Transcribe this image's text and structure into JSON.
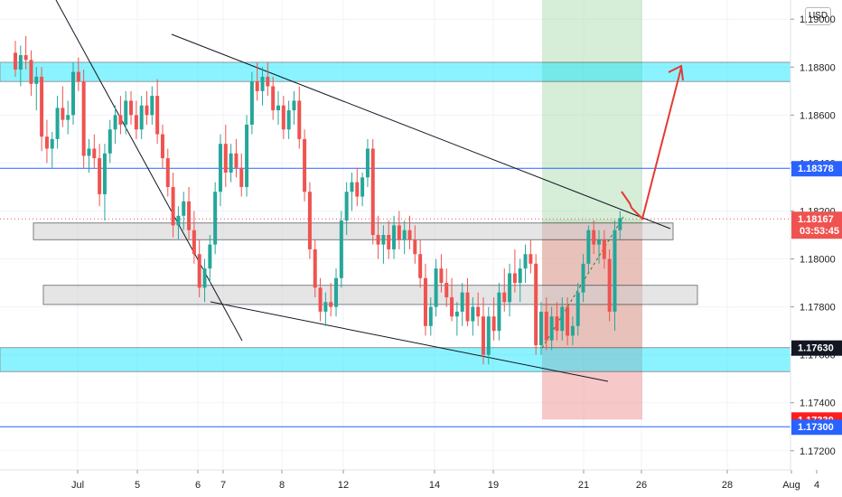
{
  "currency": "USD",
  "colors": {
    "bull": "#26a69a",
    "bear": "#ef5350",
    "zone_cyan": "#00e5ff",
    "zone_grey": "#d0d0d0",
    "profit": "#a5d6a7",
    "loss": "#ef9a9a",
    "level_line": "#2962ff",
    "arrow": "#e53935"
  },
  "chart_data": {
    "type": "candlestick",
    "title": "",
    "ylim": [
      1.1712,
      1.1908
    ],
    "y_ticks": [
      "1.17200",
      "1.17400",
      "1.17600",
      "1.17800",
      "1.18000",
      "1.18200",
      "1.18400",
      "1.18600",
      "1.18800",
      "1.19000"
    ],
    "x_ticks": [
      "Jul",
      "5",
      "6",
      "7",
      "8",
      "12",
      "14",
      "19",
      "21",
      "26",
      "28",
      "Aug",
      "4"
    ],
    "price_labels": [
      {
        "text": "1.18378",
        "value": 1.18378,
        "color": "#2962ff"
      },
      {
        "text": "1.18167",
        "value": 1.18167,
        "color": "#ef5350",
        "countdown": "03:53:45"
      },
      {
        "text": "1.17630",
        "value": 1.1763,
        "color": "#131722"
      },
      {
        "text": "1.17330",
        "value": 1.1733,
        "color": "#ff1e1e"
      },
      {
        "text": "1.17300",
        "value": 1.173,
        "color": "#2962ff"
      }
    ],
    "horizontal_lines": [
      1.18378,
      1.173
    ],
    "zones": [
      {
        "kind": "resistance",
        "from": 1.1874,
        "to": 1.1882
      },
      {
        "kind": "support",
        "from": 1.1753,
        "to": 1.1763
      },
      {
        "kind": "range",
        "from": 1.1808,
        "to": 1.1815
      },
      {
        "kind": "range",
        "from": 1.1781,
        "to": 1.1789
      }
    ],
    "position": {
      "entry": 1.1815,
      "target": 1.1908,
      "stop": 1.1733
    },
    "ohlc": [
      [
        1.1886,
        1.1891,
        1.1876,
        1.1879
      ],
      [
        1.1879,
        1.1889,
        1.1872,
        1.1885
      ],
      [
        1.1885,
        1.1893,
        1.1879,
        1.1883
      ],
      [
        1.1883,
        1.1887,
        1.1868,
        1.1873
      ],
      [
        1.1873,
        1.188,
        1.1862,
        1.1876
      ],
      [
        1.1876,
        1.188,
        1.1845,
        1.1851
      ],
      [
        1.1851,
        1.1858,
        1.184,
        1.1846
      ],
      [
        1.1846,
        1.1853,
        1.1838,
        1.185
      ],
      [
        1.185,
        1.1868,
        1.1846,
        1.1863
      ],
      [
        1.1863,
        1.1872,
        1.1855,
        1.1858
      ],
      [
        1.1858,
        1.1866,
        1.1852,
        1.186
      ],
      [
        1.186,
        1.1882,
        1.1856,
        1.1878
      ],
      [
        1.1878,
        1.1884,
        1.187,
        1.1874
      ],
      [
        1.1874,
        1.1879,
        1.1838,
        1.1843
      ],
      [
        1.1843,
        1.185,
        1.1836,
        1.1846
      ],
      [
        1.1846,
        1.1852,
        1.1838,
        1.1842
      ],
      [
        1.1842,
        1.1848,
        1.1822,
        1.1827
      ],
      [
        1.1827,
        1.1848,
        1.1816,
        1.1844
      ],
      [
        1.1844,
        1.1858,
        1.184,
        1.1854
      ],
      [
        1.1854,
        1.1864,
        1.1848,
        1.186
      ],
      [
        1.186,
        1.1868,
        1.1852,
        1.1856
      ],
      [
        1.1856,
        1.187,
        1.1852,
        1.1866
      ],
      [
        1.1866,
        1.187,
        1.1856,
        1.186
      ],
      [
        1.186,
        1.1866,
        1.185,
        1.1854
      ],
      [
        1.1854,
        1.1868,
        1.185,
        1.1864
      ],
      [
        1.1864,
        1.187,
        1.1856,
        1.186
      ],
      [
        1.186,
        1.1872,
        1.1856,
        1.1868
      ],
      [
        1.1868,
        1.1875,
        1.1848,
        1.1852
      ],
      [
        1.1852,
        1.1856,
        1.1838,
        1.1842
      ],
      [
        1.1842,
        1.1846,
        1.1826,
        1.183
      ],
      [
        1.183,
        1.1836,
        1.1809,
        1.1814
      ],
      [
        1.1814,
        1.1822,
        1.1808,
        1.1818
      ],
      [
        1.1818,
        1.1828,
        1.1812,
        1.1824
      ],
      [
        1.1824,
        1.183,
        1.1808,
        1.1812
      ],
      [
        1.1812,
        1.182,
        1.1798,
        1.1802
      ],
      [
        1.1802,
        1.1808,
        1.1784,
        1.1788
      ],
      [
        1.1788,
        1.18,
        1.1782,
        1.1796
      ],
      [
        1.1796,
        1.181,
        1.179,
        1.1806
      ],
      [
        1.1806,
        1.1832,
        1.1802,
        1.1828
      ],
      [
        1.1828,
        1.1852,
        1.1822,
        1.1848
      ],
      [
        1.1848,
        1.1856,
        1.183,
        1.1836
      ],
      [
        1.1836,
        1.1848,
        1.1832,
        1.1844
      ],
      [
        1.1844,
        1.185,
        1.1834,
        1.1838
      ],
      [
        1.1838,
        1.1844,
        1.1826,
        1.183
      ],
      [
        1.183,
        1.186,
        1.1826,
        1.1856
      ],
      [
        1.1856,
        1.1878,
        1.1852,
        1.1874
      ],
      [
        1.1874,
        1.1882,
        1.1866,
        1.187
      ],
      [
        1.187,
        1.188,
        1.1864,
        1.1876
      ],
      [
        1.1876,
        1.1882,
        1.1868,
        1.1872
      ],
      [
        1.1872,
        1.1876,
        1.1858,
        1.1862
      ],
      [
        1.1862,
        1.187,
        1.1856,
        1.1864
      ],
      [
        1.1864,
        1.1868,
        1.185,
        1.1854
      ],
      [
        1.1854,
        1.1866,
        1.185,
        1.1862
      ],
      [
        1.1862,
        1.187,
        1.1856,
        1.1866
      ],
      [
        1.1866,
        1.1872,
        1.1846,
        1.185
      ],
      [
        1.185,
        1.1854,
        1.1824,
        1.1828
      ],
      [
        1.1828,
        1.1832,
        1.18,
        1.1804
      ],
      [
        1.1804,
        1.1808,
        1.1784,
        1.1788
      ],
      [
        1.1788,
        1.1792,
        1.1774,
        1.1778
      ],
      [
        1.1778,
        1.1786,
        1.1772,
        1.1782
      ],
      [
        1.1782,
        1.179,
        1.1776,
        1.178
      ],
      [
        1.178,
        1.1796,
        1.1776,
        1.1792
      ],
      [
        1.1792,
        1.182,
        1.1788,
        1.1816
      ],
      [
        1.1816,
        1.1832,
        1.181,
        1.1828
      ],
      [
        1.1828,
        1.1836,
        1.182,
        1.1832
      ],
      [
        1.1832,
        1.1838,
        1.1822,
        1.1826
      ],
      [
        1.1826,
        1.1836,
        1.1822,
        1.1834
      ],
      [
        1.1834,
        1.185,
        1.183,
        1.1846
      ],
      [
        1.1846,
        1.185,
        1.1806,
        1.181
      ],
      [
        1.181,
        1.1818,
        1.18,
        1.1806
      ],
      [
        1.1806,
        1.1814,
        1.1798,
        1.181
      ],
      [
        1.181,
        1.1816,
        1.18,
        1.1804
      ],
      [
        1.1804,
        1.1818,
        1.18,
        1.1814
      ],
      [
        1.1814,
        1.182,
        1.1804,
        1.1808
      ],
      [
        1.1808,
        1.1816,
        1.1802,
        1.1812
      ],
      [
        1.1812,
        1.1818,
        1.1804,
        1.1808
      ],
      [
        1.1808,
        1.1814,
        1.1798,
        1.1802
      ],
      [
        1.1802,
        1.1808,
        1.1788,
        1.1792
      ],
      [
        1.1792,
        1.1798,
        1.1768,
        1.1772
      ],
      [
        1.1772,
        1.1784,
        1.1768,
        1.178
      ],
      [
        1.178,
        1.18,
        1.1776,
        1.1796
      ],
      [
        1.1796,
        1.1802,
        1.1786,
        1.179
      ],
      [
        1.179,
        1.1796,
        1.178,
        1.1784
      ],
      [
        1.1784,
        1.1792,
        1.1774,
        1.1776
      ],
      [
        1.1776,
        1.1782,
        1.1768,
        1.1778
      ],
      [
        1.1778,
        1.179,
        1.1772,
        1.1786
      ],
      [
        1.1786,
        1.1792,
        1.1772,
        1.1774
      ],
      [
        1.1774,
        1.1784,
        1.1768,
        1.178
      ],
      [
        1.178,
        1.1786,
        1.1772,
        1.1776
      ],
      [
        1.1776,
        1.1784,
        1.1756,
        1.176
      ],
      [
        1.176,
        1.178,
        1.1756,
        1.1776
      ],
      [
        1.1776,
        1.1784,
        1.1766,
        1.177
      ],
      [
        1.177,
        1.179,
        1.1766,
        1.1786
      ],
      [
        1.1786,
        1.1796,
        1.1778,
        1.1782
      ],
      [
        1.1782,
        1.1798,
        1.1776,
        1.1794
      ],
      [
        1.1794,
        1.1804,
        1.1786,
        1.179
      ],
      [
        1.179,
        1.18,
        1.1782,
        1.1796
      ],
      [
        1.1796,
        1.1806,
        1.179,
        1.1802
      ],
      [
        1.1802,
        1.1808,
        1.1794,
        1.1798
      ],
      [
        1.1798,
        1.1802,
        1.176,
        1.1764
      ],
      [
        1.1764,
        1.1782,
        1.176,
        1.1778
      ],
      [
        1.1778,
        1.1784,
        1.1762,
        1.1766
      ],
      [
        1.1766,
        1.178,
        1.1762,
        1.1776
      ],
      [
        1.1776,
        1.1782,
        1.1766,
        1.177
      ],
      [
        1.177,
        1.1784,
        1.1766,
        1.178
      ],
      [
        1.178,
        1.1784,
        1.1764,
        1.1768
      ],
      [
        1.1768,
        1.1776,
        1.1764,
        1.1772
      ],
      [
        1.1772,
        1.179,
        1.1768,
        1.1786
      ],
      [
        1.1786,
        1.1802,
        1.1782,
        1.1798
      ],
      [
        1.1798,
        1.1814,
        1.1794,
        1.1812
      ],
      [
        1.1812,
        1.1816,
        1.1802,
        1.1806
      ],
      [
        1.1806,
        1.1812,
        1.1798,
        1.1808
      ],
      [
        1.1808,
        1.1812,
        1.1796,
        1.18
      ],
      [
        1.18,
        1.1804,
        1.1774,
        1.1778
      ],
      [
        1.1778,
        1.1816,
        1.177,
        1.1812
      ],
      [
        1.1812,
        1.182,
        1.1808,
        1.1817
      ]
    ]
  }
}
